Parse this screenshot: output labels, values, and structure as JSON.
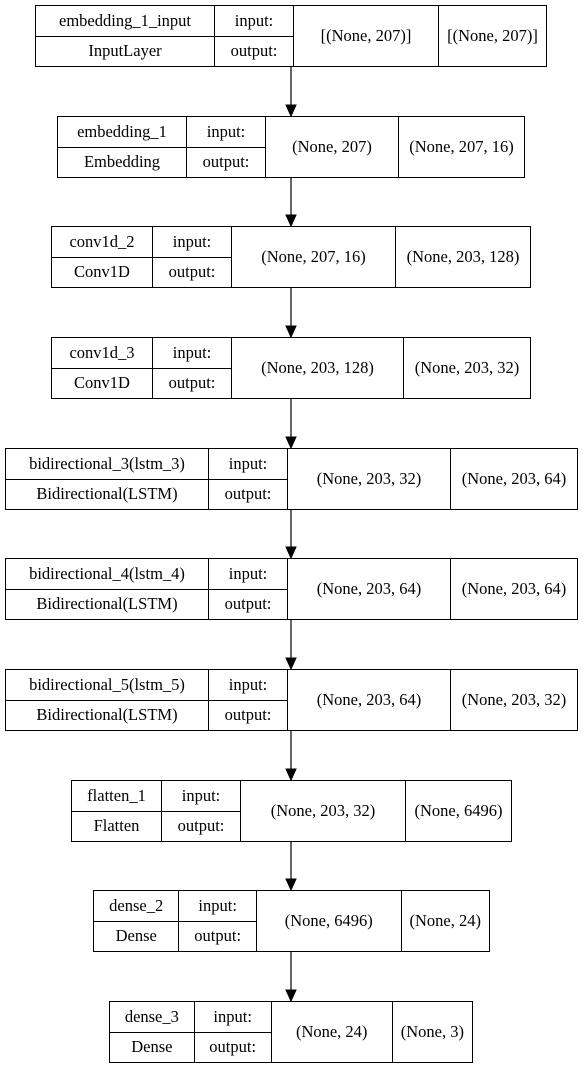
{
  "layers": [
    {
      "name": "embedding_1_input",
      "type": "InputLayer",
      "input_label": "input:",
      "output_label": "output:",
      "input_shape": "[(None, 207)]",
      "output_shape": "[(None, 207)]"
    },
    {
      "name": "embedding_1",
      "type": "Embedding",
      "input_label": "input:",
      "output_label": "output:",
      "input_shape": "(None, 207)",
      "output_shape": "(None, 207, 16)"
    },
    {
      "name": "conv1d_2",
      "type": "Conv1D",
      "input_label": "input:",
      "output_label": "output:",
      "input_shape": "(None, 207, 16)",
      "output_shape": "(None, 203, 128)"
    },
    {
      "name": "conv1d_3",
      "type": "Conv1D",
      "input_label": "input:",
      "output_label": "output:",
      "input_shape": "(None, 203, 128)",
      "output_shape": "(None, 203, 32)"
    },
    {
      "name": "bidirectional_3(lstm_3)",
      "type": "Bidirectional(LSTM)",
      "input_label": "input:",
      "output_label": "output:",
      "input_shape": "(None, 203, 32)",
      "output_shape": "(None, 203, 64)"
    },
    {
      "name": "bidirectional_4(lstm_4)",
      "type": "Bidirectional(LSTM)",
      "input_label": "input:",
      "output_label": "output:",
      "input_shape": "(None, 203, 64)",
      "output_shape": "(None, 203, 64)"
    },
    {
      "name": "bidirectional_5(lstm_5)",
      "type": "Bidirectional(LSTM)",
      "input_label": "input:",
      "output_label": "output:",
      "input_shape": "(None, 203, 64)",
      "output_shape": "(None, 203, 32)"
    },
    {
      "name": "flatten_1",
      "type": "Flatten",
      "input_label": "input:",
      "output_label": "output:",
      "input_shape": "(None, 203, 32)",
      "output_shape": "(None, 6496)"
    },
    {
      "name": "dense_2",
      "type": "Dense",
      "input_label": "input:",
      "output_label": "output:",
      "input_shape": "(None, 6496)",
      "output_shape": "(None, 24)"
    },
    {
      "name": "dense_3",
      "type": "Dense",
      "input_label": "input:",
      "output_label": "output:",
      "input_shape": "(None, 24)",
      "output_shape": "(None, 3)"
    }
  ],
  "colors": {
    "stroke": "#000000",
    "fill": "#ffffff"
  }
}
